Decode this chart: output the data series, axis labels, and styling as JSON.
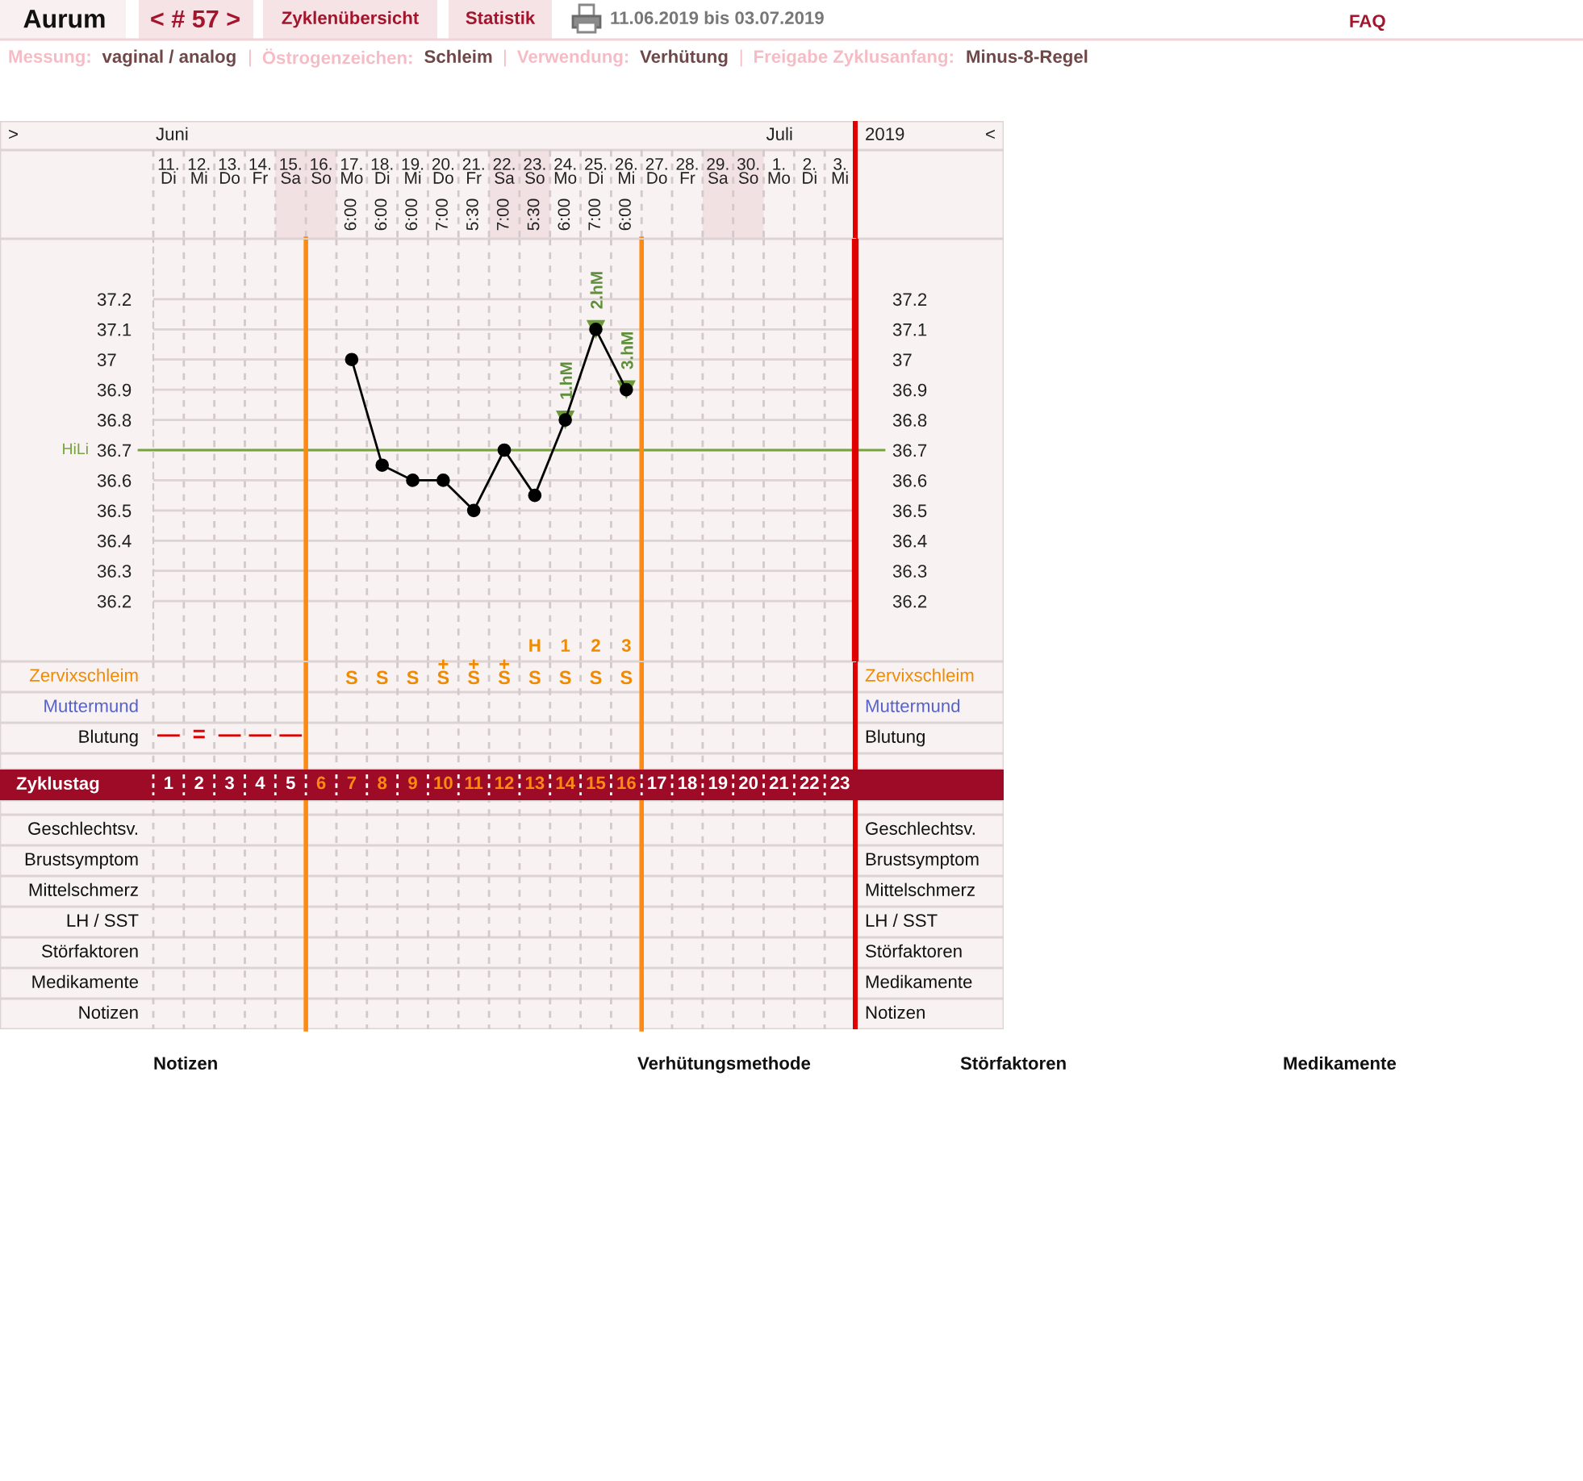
{
  "chart_data": {
    "type": "line",
    "title": "Aurum",
    "subtitle": "Messung: vaginal / analog | Östrogenzeichen: Schleim | Verwendung: Verhütung | Freigabe Zyklusanfang: Minus-8-Regel",
    "xlabel": "Zyklustag",
    "xlim": [
      0.5,
      23.5
    ],
    "xticks": [
      1,
      2,
      3,
      4,
      5,
      6,
      7,
      8,
      9,
      10,
      11,
      12,
      13,
      14,
      15,
      16,
      17,
      18,
      19,
      20,
      21,
      22,
      23
    ],
    "ylim": [
      36.0,
      37.4
    ],
    "yticks": [
      36.2,
      36.3,
      36.4,
      36.5,
      36.6,
      36.7,
      36.8,
      36.9,
      37,
      37.1,
      37.2
    ],
    "y2lim": [
      36.0,
      37.4
    ],
    "y2ticks": [
      36.2,
      36.3,
      36.4,
      36.5,
      36.6,
      36.7,
      36.8,
      36.9,
      37,
      37.1,
      37.2
    ],
    "grid": "y",
    "series": [
      {
        "type": "scatter",
        "color": "#6b9b37",
        "marker": "triangle",
        "x": [
          14,
          15,
          16
        ],
        "values": [
          36.8,
          37.1,
          36.9
        ]
      },
      {
        "color": "#000000",
        "marker": "circle",
        "x": [
          7,
          8,
          9,
          10,
          11,
          12,
          13,
          14,
          15,
          16
        ],
        "values": [
          37.0,
          36.65,
          36.6,
          36.6,
          36.5,
          36.7,
          36.55,
          36.8,
          37.1,
          36.9
        ]
      }
    ],
    "ref_lines": [
      {
        "axis": "y",
        "value": 36.7,
        "label": "HiLi",
        "color": "#76a33e"
      },
      {
        "axis": "x",
        "value": 5.5,
        "color": "#ff8a12"
      },
      {
        "axis": "x",
        "value": 16.5,
        "color": "#ff8a12"
      }
    ],
    "annotations": [
      "< # 57 >",
      "Zyklenübersicht",
      "Statistik",
      "11.06.2019 bis 03.07.2019",
      "FAQ",
      ">",
      "<",
      "2019",
      "Juni",
      "Juli",
      "11.\nDi",
      "12.\nMi",
      "13.\nDo",
      "14.\nFr",
      "15.\nSa",
      "16.\nSo",
      "17.\nMo",
      "18.\nDi",
      "19.\nMi",
      "20.\nDo",
      "21.\nFr",
      "22.\nSa",
      "23.\nSo",
      "24.\nMo",
      "25.\nDi",
      "26.\nMi",
      "27.\nDo",
      "28.\nFr",
      "29.\nSa",
      "30.\nSo",
      "1.\nMo",
      "2.\nDi",
      "3.\nMi",
      "6:00",
      "6:00",
      "6:00",
      "7:00",
      "5:30",
      "7:00",
      "5:30",
      "6:00",
      "7:00",
      "6:00",
      {
        "text": "1.hM",
        "x": 14,
        "y": 36.8
      },
      {
        "text": "2.hM",
        "x": 15,
        "y": 37.1
      },
      {
        "text": "3.hM",
        "x": 16,
        "y": 36.9
      },
      "H",
      "1",
      "2",
      "3",
      "S",
      "S",
      "S",
      "+\nS",
      "+\nS",
      "+\nS",
      "S",
      "S",
      "S",
      "S",
      "—",
      "=",
      "—",
      "—",
      "—",
      "Zervixschleim",
      "Muttermund",
      "Blutung",
      "Geschlechtsv.",
      "Brustsymptom",
      "Mittelschmerz",
      "LH / SST",
      "Störfaktoren",
      "Medikamente",
      "Notizen",
      "Notizen",
      "Verhütungsmethode",
      "Störfaktoren",
      "Medikamente"
    ]
  }
}
